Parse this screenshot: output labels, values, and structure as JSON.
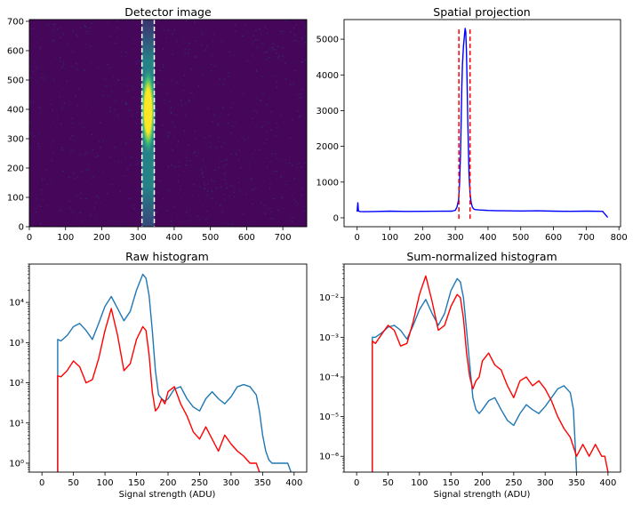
{
  "chart_data": [
    {
      "type": "heatmap",
      "title": "Detector image",
      "xlabel": "",
      "ylabel": "",
      "xlim": [
        0,
        766
      ],
      "ylim": [
        0,
        706
      ],
      "x_ticks": [
        0,
        100,
        200,
        300,
        400,
        500,
        600,
        700
      ],
      "y_ticks": [
        0,
        100,
        200,
        300,
        400,
        500,
        600,
        700
      ],
      "colormap": "viridis",
      "background_color": "#46075a",
      "roi_lines_x": [
        311,
        345
      ],
      "roi_line_color": "#ffffff",
      "spot": {
        "center_x": 328,
        "center_y": 395,
        "core_x_range": [
          316,
          340
        ],
        "core_y_range": [
          270,
          520
        ],
        "extent_y": [
          0,
          706
        ]
      }
    },
    {
      "type": "line",
      "title": "Spatial projection",
      "xlabel": "",
      "ylabel": "",
      "xlim": [
        -40,
        805
      ],
      "ylim": [
        -250,
        5550
      ],
      "x_ticks": [
        0,
        100,
        200,
        300,
        400,
        500,
        600,
        700,
        800
      ],
      "y_ticks": [
        0,
        1000,
        2000,
        3000,
        4000,
        5000
      ],
      "roi_lines_x": [
        311,
        345
      ],
      "roi_line_color": "#ff0000",
      "series": [
        {
          "color": "#0000ff",
          "x": [
            0,
            2,
            4,
            8,
            20,
            50,
            100,
            150,
            200,
            250,
            290,
            300,
            305,
            310,
            313,
            316,
            318,
            320,
            322,
            325,
            328,
            330,
            332,
            334,
            336,
            338,
            340,
            342,
            345,
            348,
            352,
            356,
            360,
            370,
            380,
            390,
            400,
            420,
            450,
            500,
            550,
            600,
            650,
            700,
            750,
            766
          ],
          "y": [
            170,
            420,
            190,
            175,
            170,
            175,
            185,
            178,
            180,
            182,
            185,
            210,
            300,
            500,
            950,
            1800,
            2800,
            3700,
            4300,
            4800,
            5100,
            5300,
            5200,
            4700,
            3800,
            2800,
            1900,
            1200,
            700,
            450,
            300,
            250,
            230,
            220,
            215,
            210,
            205,
            200,
            195,
            190,
            195,
            185,
            180,
            185,
            180,
            10
          ]
        }
      ]
    },
    {
      "type": "line",
      "title": "Raw histogram",
      "xlabel": "Signal strength (ADU)",
      "ylabel": "",
      "scale_y": "log",
      "xlim": [
        -20,
        420
      ],
      "ylim": [
        0.6,
        90000
      ],
      "x_ticks": [
        0,
        50,
        100,
        150,
        200,
        250,
        300,
        350,
        400
      ],
      "y_ticks": [
        "10^0",
        "10^1",
        "10^2",
        "10^3",
        "10^4"
      ],
      "series": [
        {
          "color": "#1f77b4",
          "x": [
            25,
            25,
            30,
            40,
            50,
            60,
            70,
            80,
            90,
            100,
            110,
            120,
            130,
            140,
            150,
            160,
            165,
            170,
            175,
            180,
            185,
            190,
            195,
            200,
            210,
            220,
            230,
            240,
            250,
            260,
            270,
            280,
            290,
            300,
            310,
            320,
            330,
            340,
            345,
            350,
            355,
            360,
            365,
            370,
            375,
            380,
            385,
            390,
            395
          ],
          "y": [
            0.6,
            1200,
            1100,
            1500,
            2500,
            3000,
            2000,
            1200,
            3000,
            8000,
            14000,
            7000,
            3500,
            6000,
            20000,
            50000,
            40000,
            15000,
            2000,
            200,
            50,
            40,
            35,
            40,
            70,
            80,
            40,
            25,
            20,
            40,
            60,
            40,
            30,
            45,
            80,
            90,
            80,
            50,
            20,
            5,
            2,
            1.2,
            1,
            1,
            1,
            1,
            1,
            1,
            0.6
          ]
        },
        {
          "color": "#ff0000",
          "x": [
            25,
            25,
            30,
            40,
            50,
            60,
            70,
            80,
            90,
            100,
            110,
            120,
            130,
            140,
            150,
            160,
            165,
            170,
            175,
            180,
            185,
            190,
            195,
            200,
            210,
            220,
            230,
            240,
            250,
            260,
            270,
            280,
            290,
            300,
            310,
            320,
            330,
            340,
            345
          ],
          "y": [
            0.6,
            150,
            140,
            200,
            350,
            250,
            100,
            120,
            400,
            2000,
            7000,
            1500,
            200,
            300,
            1200,
            2500,
            2000,
            500,
            60,
            20,
            25,
            40,
            30,
            60,
            80,
            30,
            15,
            6,
            4,
            8,
            4,
            2,
            5,
            3,
            2,
            1.5,
            1,
            1,
            0.6
          ]
        }
      ]
    },
    {
      "type": "line",
      "title": "Sum-normalized histogram",
      "xlabel": "Signal strength (ADU)",
      "ylabel": "",
      "scale_y": "log",
      "xlim": [
        -20,
        420
      ],
      "ylim": [
        4e-07,
        0.07
      ],
      "x_ticks": [
        0,
        50,
        100,
        150,
        200,
        250,
        300,
        350,
        400
      ],
      "y_ticks": [
        "10^-6",
        "10^-5",
        "10^-4",
        "10^-3",
        "10^-2"
      ],
      "series": [
        {
          "color": "#1f77b4",
          "x": [
            25,
            25,
            30,
            40,
            50,
            60,
            70,
            80,
            90,
            100,
            110,
            120,
            130,
            140,
            150,
            160,
            165,
            170,
            175,
            180,
            185,
            190,
            195,
            200,
            210,
            220,
            230,
            240,
            250,
            260,
            270,
            280,
            290,
            300,
            310,
            320,
            330,
            340,
            345,
            350
          ],
          "y": [
            4e-07,
            0.001,
            0.001,
            0.0013,
            0.0018,
            0.002,
            0.0015,
            0.0009,
            0.002,
            0.005,
            0.009,
            0.004,
            0.002,
            0.004,
            0.015,
            0.03,
            0.025,
            0.01,
            0.0015,
            0.0002,
            3e-05,
            1.5e-05,
            1.2e-05,
            1.5e-05,
            2.5e-05,
            3e-05,
            1.5e-05,
            8e-06,
            6e-06,
            1.2e-05,
            2e-05,
            1.5e-05,
            1.2e-05,
            1.8e-05,
            3e-05,
            5e-05,
            6e-05,
            4e-05,
            1.5e-05,
            4e-07
          ]
        },
        {
          "color": "#ff0000",
          "x": [
            25,
            25,
            30,
            40,
            50,
            60,
            70,
            80,
            90,
            100,
            110,
            120,
            130,
            140,
            150,
            160,
            165,
            170,
            175,
            180,
            185,
            190,
            195,
            200,
            210,
            220,
            230,
            240,
            250,
            260,
            270,
            280,
            290,
            300,
            310,
            320,
            330,
            340,
            350,
            360,
            370,
            380,
            390,
            395,
            400
          ],
          "y": [
            4e-07,
            0.0008,
            0.0007,
            0.0012,
            0.002,
            0.0015,
            0.0006,
            0.0007,
            0.0025,
            0.012,
            0.035,
            0.008,
            0.0015,
            0.002,
            0.006,
            0.012,
            0.01,
            0.003,
            0.0004,
            0.0001,
            5e-05,
            8e-05,
            0.0001,
            0.00025,
            0.0004,
            0.0002,
            0.00015,
            6e-05,
            3e-05,
            8e-05,
            0.0001,
            6e-05,
            8e-05,
            5e-05,
            2.5e-05,
            1e-05,
            5e-06,
            3e-06,
            1e-06,
            2e-06,
            1e-06,
            2e-06,
            1e-06,
            1e-06,
            4e-07
          ]
        }
      ]
    }
  ]
}
